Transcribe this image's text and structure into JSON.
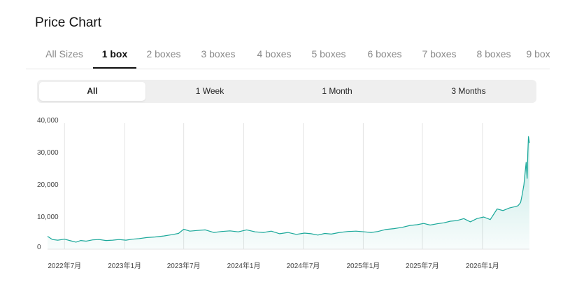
{
  "page": {
    "title": "Price Chart"
  },
  "size_tabs": [
    {
      "label": "All Sizes",
      "active": false
    },
    {
      "label": "1 box",
      "active": true
    },
    {
      "label": "2 boxes",
      "active": false
    },
    {
      "label": "3 boxes",
      "active": false
    },
    {
      "label": "4 boxes",
      "active": false
    },
    {
      "label": "5 boxes",
      "active": false
    },
    {
      "label": "6 boxes",
      "active": false
    },
    {
      "label": "7 boxes",
      "active": false
    },
    {
      "label": "8 boxes",
      "active": false
    },
    {
      "label": "9 boxes",
      "active": false
    }
  ],
  "range_tabs": [
    {
      "label": "All",
      "active": true
    },
    {
      "label": "1 Week",
      "active": false
    },
    {
      "label": "1 Month",
      "active": false
    },
    {
      "label": "3 Months",
      "active": false
    }
  ],
  "chart_data": {
    "type": "area",
    "y_ticks": [
      "40,000",
      "30,000",
      "20,000",
      "10,000",
      "0"
    ],
    "ylim": [
      0,
      40000
    ],
    "x_ticks": [
      {
        "label": "2022年7月",
        "date": "2022-07-01"
      },
      {
        "label": "2023年1月",
        "date": "2023-01-01"
      },
      {
        "label": "2023年7月",
        "date": "2023-07-01"
      },
      {
        "label": "2024年1月",
        "date": "2024-01-01"
      },
      {
        "label": "2024年7月",
        "date": "2024-07-01"
      },
      {
        "label": "2025年1月",
        "date": "2025-01-01"
      },
      {
        "label": "2025年7月",
        "date": "2025-07-01"
      },
      {
        "label": "2026年1月",
        "date": "2026-01-01"
      }
    ],
    "xlim": [
      "2022-05-10",
      "2026-05-25"
    ],
    "grid": "vertical",
    "line_color": "#1aa89a",
    "fill_color": "#1aa89a",
    "series": [
      {
        "x": [
          "2022-05-10",
          "2022-05-25",
          "2022-06-10",
          "2022-07-01",
          "2022-07-20",
          "2022-08-05",
          "2022-08-20",
          "2022-09-05",
          "2022-09-25",
          "2022-10-15",
          "2022-11-05",
          "2022-11-25",
          "2022-12-15",
          "2023-01-05",
          "2023-01-25",
          "2023-02-15",
          "2023-03-10",
          "2023-04-05",
          "2023-05-01",
          "2023-05-25",
          "2023-06-15",
          "2023-07-01",
          "2023-07-20",
          "2023-08-10",
          "2023-09-05",
          "2023-10-01",
          "2023-10-25",
          "2023-11-20",
          "2023-12-15",
          "2024-01-10",
          "2024-02-05",
          "2024-03-01",
          "2024-03-25",
          "2024-04-20",
          "2024-05-15",
          "2024-06-10",
          "2024-07-05",
          "2024-07-25",
          "2024-08-15",
          "2024-09-05",
          "2024-09-25",
          "2024-10-20",
          "2024-11-15",
          "2024-12-10",
          "2025-01-05",
          "2025-01-25",
          "2025-02-15",
          "2025-03-10",
          "2025-04-05",
          "2025-05-01",
          "2025-05-25",
          "2025-06-15",
          "2025-07-05",
          "2025-07-25",
          "2025-08-15",
          "2025-09-05",
          "2025-09-25",
          "2025-10-15",
          "2025-11-05",
          "2025-11-25",
          "2025-12-15",
          "2026-01-05",
          "2026-01-25",
          "2026-02-15",
          "2026-03-05",
          "2026-03-25",
          "2026-04-10",
          "2026-04-20",
          "2026-04-28",
          "2026-05-03",
          "2026-05-08",
          "2026-05-12",
          "2026-05-15",
          "2026-05-18",
          "2026-05-20",
          "2026-05-22",
          "2026-05-25"
        ],
        "y": [
          4000,
          3000,
          2800,
          3100,
          2600,
          2200,
          2700,
          2500,
          2900,
          3000,
          2700,
          2800,
          3000,
          2800,
          3100,
          3300,
          3600,
          3800,
          4100,
          4500,
          4900,
          6200,
          5600,
          5800,
          6000,
          5200,
          5500,
          5700,
          5400,
          6000,
          5400,
          5200,
          5600,
          4800,
          5200,
          4600,
          5000,
          4800,
          4400,
          4900,
          4700,
          5200,
          5500,
          5600,
          5400,
          5200,
          5500,
          6100,
          6400,
          6800,
          7400,
          7600,
          8000,
          7500,
          7900,
          8200,
          8700,
          8900,
          9500,
          8500,
          9500,
          10000,
          9200,
          12500,
          12000,
          12800,
          13200,
          13500,
          14500,
          17000,
          20000,
          24000,
          27000,
          22000,
          30000,
          35000,
          33000
        ]
      }
    ]
  }
}
